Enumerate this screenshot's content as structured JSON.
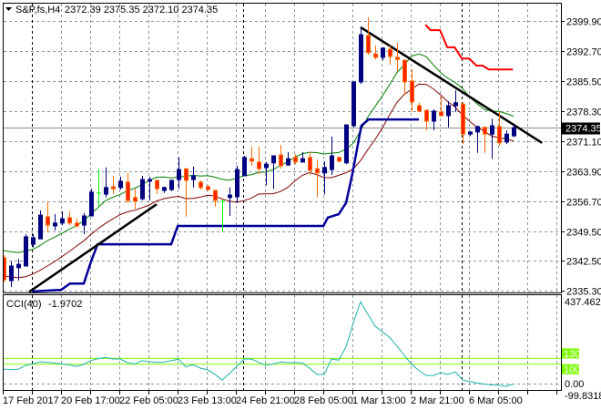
{
  "header": {
    "symbol": "S&P,fs,H4",
    "ohlc": "2372.39 2375.35 2372.10 2374.35"
  },
  "chart_data": {
    "type": "candlestick",
    "title": "S&P,fs,H4",
    "colors": {
      "bull": "#000080",
      "bear": "#ff2200",
      "bear_border": "#ff6a00",
      "doji": "#00ff00",
      "ma_high": "#008000",
      "ma_low": "#800000",
      "step_blue": "#000099",
      "step_red": "#ff0000",
      "trend": "#000000",
      "cci": "#20b2aa",
      "cci_levels": "#7cfc00"
    },
    "price_axis": {
      "min": 2335.3,
      "max": 2399.9,
      "ticks": [
        "2399.90",
        "2392.70",
        "2385.50",
        "2378.30",
        "2371.10",
        "2363.90",
        "2356.70",
        "2349.50",
        "2342.50",
        "2335.30"
      ]
    },
    "current_price": "2374.35",
    "time_labels": [
      {
        "label": "17 Feb 2017",
        "index": 1
      },
      {
        "label": "20 Feb 17:00",
        "index": 9
      },
      {
        "label": "22 Feb 05:00",
        "index": 17
      },
      {
        "label": "23 Feb 13:00",
        "index": 25
      },
      {
        "label": "24 Feb 21:00",
        "index": 33
      },
      {
        "label": "28 Feb 05:00",
        "index": 41
      },
      {
        "label": "1 Mar 13:00",
        "index": 49
      },
      {
        "label": "2 Mar 21:00",
        "index": 57
      },
      {
        "label": "6 Mar 05:00",
        "index": 65
      }
    ],
    "candles": [
      [
        2343.2,
        2343.8,
        2337.3,
        2337.9
      ],
      [
        2337.7,
        2342.3,
        2336.2,
        2341.2
      ],
      [
        2340.8,
        2342.9,
        2337.7,
        2341.6
      ],
      [
        2341.2,
        2348.8,
        2341.2,
        2348.2
      ],
      [
        2346.4,
        2348.8,
        2345.6,
        2348.0
      ],
      [
        2347.7,
        2354.5,
        2347.7,
        2353.4
      ],
      [
        2353.0,
        2356.5,
        2349.3,
        2351.0
      ],
      [
        2350.8,
        2353.6,
        2349.7,
        2351.5
      ],
      [
        2351.5,
        2354.3,
        2351.0,
        2352.5
      ],
      [
        2352.8,
        2354.3,
        2351.0,
        2351.5
      ],
      [
        2351.5,
        2352.5,
        2350.4,
        2350.8
      ],
      [
        2351.0,
        2353.9,
        2348.8,
        2353.2
      ],
      [
        2353.2,
        2359.7,
        2353.2,
        2358.9
      ],
      [
        2358.7,
        2364.5,
        2355.6,
        2358.7
      ],
      [
        2358.4,
        2364.8,
        2357.6,
        2360.0
      ],
      [
        2360.2,
        2362.8,
        2358.4,
        2359.7
      ],
      [
        2360.0,
        2362.6,
        2359.5,
        2361.5
      ],
      [
        2361.3,
        2363.5,
        2356.3,
        2356.9
      ],
      [
        2357.6,
        2359.7,
        2354.9,
        2356.7
      ],
      [
        2357.3,
        2362.8,
        2356.9,
        2361.9
      ],
      [
        2361.5,
        2362.6,
        2356.9,
        2361.9
      ],
      [
        2361.7,
        2361.9,
        2358.4,
        2359.7
      ],
      [
        2359.3,
        2360.2,
        2358.7,
        2360.0
      ],
      [
        2359.5,
        2361.9,
        2359.1,
        2361.7
      ],
      [
        2361.9,
        2367.2,
        2359.7,
        2364.3
      ],
      [
        2364.5,
        2364.5,
        2353.0,
        2361.7
      ],
      [
        2361.9,
        2365.0,
        2360.0,
        2362.8
      ],
      [
        2361.3,
        2361.7,
        2359.5,
        2360.0
      ],
      [
        2360.2,
        2360.6,
        2359.3,
        2359.5
      ],
      [
        2359.3,
        2359.3,
        2355.4,
        2356.9
      ],
      [
        2356.7,
        2357.1,
        2349.5,
        2356.7
      ],
      [
        2357.6,
        2360.0,
        2353.2,
        2358.2
      ],
      [
        2357.8,
        2365.2,
        2356.3,
        2364.3
      ],
      [
        2362.8,
        2367.6,
        2362.8,
        2367.2
      ],
      [
        2366.9,
        2369.8,
        2365.2,
        2366.3
      ],
      [
        2366.1,
        2369.8,
        2363.2,
        2364.5
      ],
      [
        2364.8,
        2366.1,
        2360.6,
        2365.6
      ],
      [
        2365.9,
        2367.6,
        2359.7,
        2367.6
      ],
      [
        2367.8,
        2370.2,
        2364.5,
        2365.2
      ],
      [
        2365.4,
        2368.5,
        2365.2,
        2366.9
      ],
      [
        2367.2,
        2368.0,
        2365.6,
        2366.1
      ],
      [
        2366.1,
        2368.5,
        2366.1,
        2366.9
      ],
      [
        2367.2,
        2368.5,
        2363.0,
        2364.1
      ],
      [
        2364.5,
        2366.7,
        2357.6,
        2363.5
      ],
      [
        2363.5,
        2366.3,
        2358.4,
        2364.8
      ],
      [
        2364.3,
        2372.2,
        2363.0,
        2367.6
      ],
      [
        2367.2,
        2367.4,
        2366.1,
        2366.3
      ],
      [
        2365.9,
        2375.0,
        2365.6,
        2375.0
      ],
      [
        2374.8,
        2385.3,
        2374.4,
        2385.3
      ],
      [
        2385.3,
        2398.4,
        2384.8,
        2396.6
      ],
      [
        2396.4,
        2400.8,
        2391.8,
        2392.3
      ],
      [
        2392.0,
        2394.0,
        2390.7,
        2391.2
      ],
      [
        2391.2,
        2393.6,
        2390.5,
        2393.4
      ],
      [
        2393.1,
        2394.0,
        2389.4,
        2391.4
      ],
      [
        2391.2,
        2394.7,
        2387.9,
        2390.7
      ],
      [
        2390.5,
        2390.7,
        2382.2,
        2385.3
      ],
      [
        2385.5,
        2388.3,
        2378.1,
        2380.5
      ],
      [
        2379.6,
        2380.3,
        2378.1,
        2378.3
      ],
      [
        2378.5,
        2378.7,
        2373.7,
        2375.9
      ],
      [
        2375.9,
        2378.7,
        2373.7,
        2378.3
      ],
      [
        2378.1,
        2381.8,
        2377.0,
        2377.2
      ],
      [
        2377.2,
        2380.7,
        2374.4,
        2379.6
      ],
      [
        2379.6,
        2383.3,
        2378.1,
        2380.3
      ],
      [
        2380.0,
        2380.3,
        2370.4,
        2372.8
      ],
      [
        2372.8,
        2373.5,
        2372.4,
        2373.3
      ],
      [
        2373.3,
        2374.8,
        2368.3,
        2374.6
      ],
      [
        2374.4,
        2374.6,
        2368.3,
        2372.8
      ],
      [
        2372.8,
        2376.5,
        2366.9,
        2374.8
      ],
      [
        2374.6,
        2378.1,
        2370.0,
        2370.7
      ],
      [
        2370.9,
        2373.7,
        2370.4,
        2372.8
      ],
      [
        2372.39,
        2375.35,
        2372.1,
        2374.35
      ]
    ],
    "ma_high": {
      "period": 10,
      "seed": 2345.0
    },
    "ma_low": {
      "period": 10,
      "seed": 2339.0
    },
    "step_blue": [
      [
        4.9,
        2335.1
      ],
      [
        8.9,
        2335.5
      ],
      [
        10.1,
        2337.0
      ],
      [
        12,
        2337.0
      ],
      [
        13,
        2342.3
      ],
      [
        13.9,
        2346.4
      ],
      [
        24,
        2346.4
      ],
      [
        24.9,
        2350.8
      ],
      [
        44.9,
        2350.8
      ],
      [
        45.5,
        2352.8
      ],
      [
        47,
        2353.6
      ],
      [
        48,
        2356.3
      ],
      [
        48.9,
        2363.5
      ],
      [
        50.1,
        2374.8
      ],
      [
        51.1,
        2376.3
      ],
      [
        58,
        2376.3
      ]
    ],
    "step_red": [
      [
        58.9,
        2399.0
      ],
      [
        59.6,
        2397.7
      ],
      [
        60.9,
        2397.7
      ],
      [
        61.9,
        2393.6
      ],
      [
        62.9,
        2393.6
      ],
      [
        63.9,
        2390.9
      ],
      [
        64.9,
        2390.9
      ],
      [
        65.9,
        2389.2
      ],
      [
        66.75,
        2389.2
      ],
      [
        67.6,
        2388.3
      ],
      [
        70.9,
        2388.3
      ]
    ],
    "trendlines": [
      [
        [
          4.5,
          2335.0
        ],
        [
          22,
          2356.0
        ]
      ],
      [
        [
          50,
          2398.4
        ],
        [
          74.9,
          2370.7
        ]
      ]
    ],
    "cci": {
      "label": "CCI(40)",
      "value": "-1.9702",
      "levels": [
        100,
        130
      ],
      "level_labels": [
        "130",
        "100"
      ],
      "axis_labels": {
        "max": "437.4628",
        "zero": "0.00",
        "min": "-99.8318"
      },
      "values": [
        75,
        72,
        74,
        93,
        101,
        113,
        109,
        106,
        101,
        96,
        89,
        99,
        119,
        129,
        135,
        127,
        127,
        108,
        101,
        118,
        113,
        110,
        111,
        118,
        126,
        86,
        97,
        80,
        71,
        48,
        18,
        52,
        89,
        127,
        127,
        110,
        94,
        101,
        112,
        108,
        108,
        107,
        80,
        47,
        47,
        127,
        121,
        190,
        313,
        423,
        358,
        296,
        267,
        238,
        194,
        145,
        99,
        68,
        42,
        42,
        56,
        47,
        60,
        19,
        10,
        3,
        -3,
        -7,
        -9,
        -14,
        -2
      ]
    }
  }
}
